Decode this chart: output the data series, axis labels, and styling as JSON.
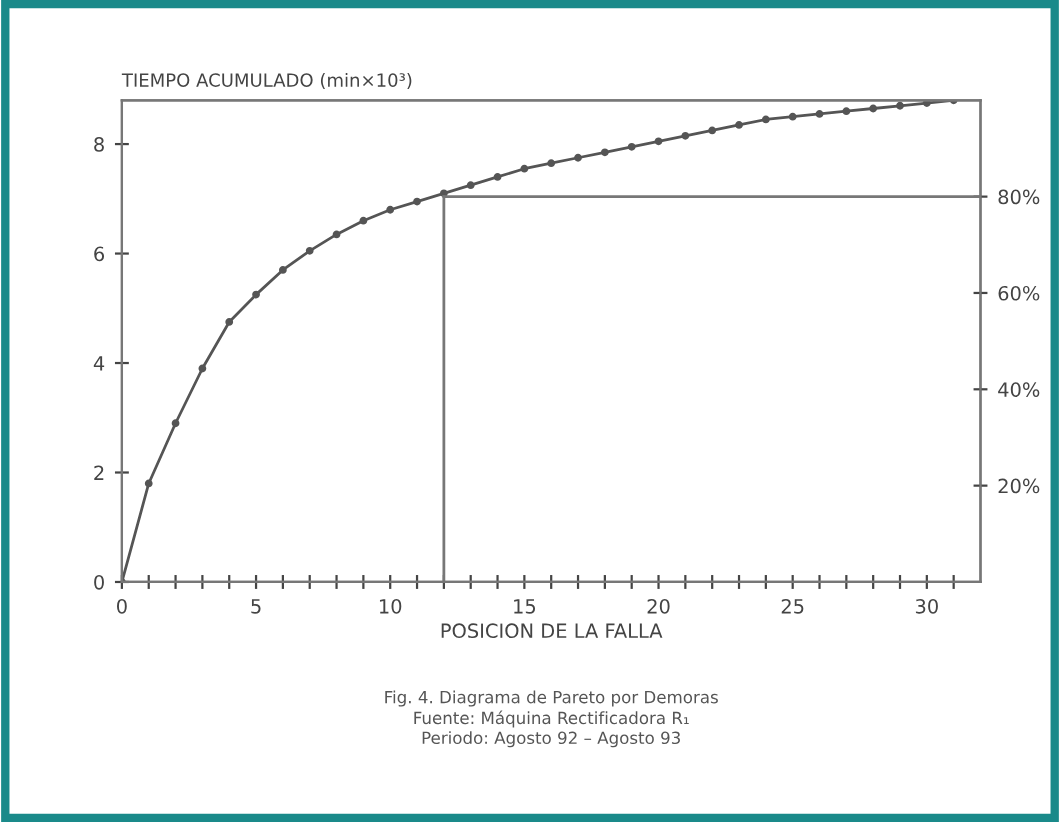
{
  "chart_data": {
    "type": "line",
    "ylabel": "TIEMPO ACUMULADO (min×10³)",
    "xlabel": "POSICION DE LA FALLA",
    "x": [
      0,
      1,
      2,
      3,
      4,
      5,
      6,
      7,
      8,
      9,
      10,
      11,
      12,
      13,
      14,
      15,
      16,
      17,
      18,
      19,
      20,
      21,
      22,
      23,
      24,
      25,
      26,
      27,
      28,
      29,
      30,
      31
    ],
    "series": [
      {
        "color": "#555555",
        "values": [
          0,
          1.8,
          2.9,
          3.9,
          4.75,
          5.25,
          5.7,
          6.05,
          6.35,
          6.6,
          6.8,
          6.95,
          7.1,
          7.25,
          7.4,
          7.55,
          7.65,
          7.75,
          7.85,
          7.95,
          8.05,
          8.15,
          8.25,
          8.35,
          8.45,
          8.5,
          8.55,
          8.6,
          8.65,
          8.7,
          8.75,
          8.8
        ]
      }
    ],
    "marker": "circle",
    "line_style": "solid",
    "xlim": [
      0,
      32
    ],
    "ylim": [
      0,
      8.8
    ],
    "y2lim": [
      0,
      100
    ],
    "xticks": [
      0,
      {
        "value": 1,
        "label": null
      },
      {
        "value": 2,
        "label": null
      },
      {
        "value": 3,
        "label": null
      },
      {
        "value": 4,
        "label": null
      },
      5,
      {
        "value": 6,
        "label": null
      },
      {
        "value": 7,
        "label": null
      },
      {
        "value": 8,
        "label": null
      },
      {
        "value": 9,
        "label": null
      },
      10,
      {
        "value": 11,
        "label": null
      },
      {
        "value": 12,
        "label": null
      },
      {
        "value": 13,
        "label": null
      },
      {
        "value": 14,
        "label": null
      },
      15,
      {
        "value": 16,
        "label": null
      },
      {
        "value": 17,
        "label": null
      },
      {
        "value": 18,
        "label": null
      },
      {
        "value": 19,
        "label": null
      },
      20,
      {
        "value": 21,
        "label": null
      },
      {
        "value": 22,
        "label": null
      },
      {
        "value": 23,
        "label": null
      },
      {
        "value": 24,
        "label": null
      },
      25,
      {
        "value": 26,
        "label": null
      },
      {
        "value": 27,
        "label": null
      },
      {
        "value": 28,
        "label": null
      },
      {
        "value": 29,
        "label": null
      },
      30,
      {
        "value": 31,
        "label": null
      }
    ],
    "yticks": [
      0,
      2,
      4,
      6,
      8
    ],
    "y2ticks": [
      {
        "value": 20,
        "label": "20%"
      },
      {
        "value": 40,
        "label": "40%"
      },
      {
        "value": 60,
        "label": "60%"
      },
      {
        "value": 80,
        "label": "80%"
      }
    ],
    "ref_lines": [
      {
        "axis": "x",
        "value": 12,
        "color": "#777777"
      },
      {
        "axis": "y2",
        "value": 80,
        "color": "#777777"
      }
    ],
    "grid": false,
    "annotations": [
      "Fig. 4. Diagrama de Pareto por Demoras\nFuente: Máquina Rectificadora R₁\nPeriodo: Agosto 92 – Agosto 93"
    ]
  }
}
